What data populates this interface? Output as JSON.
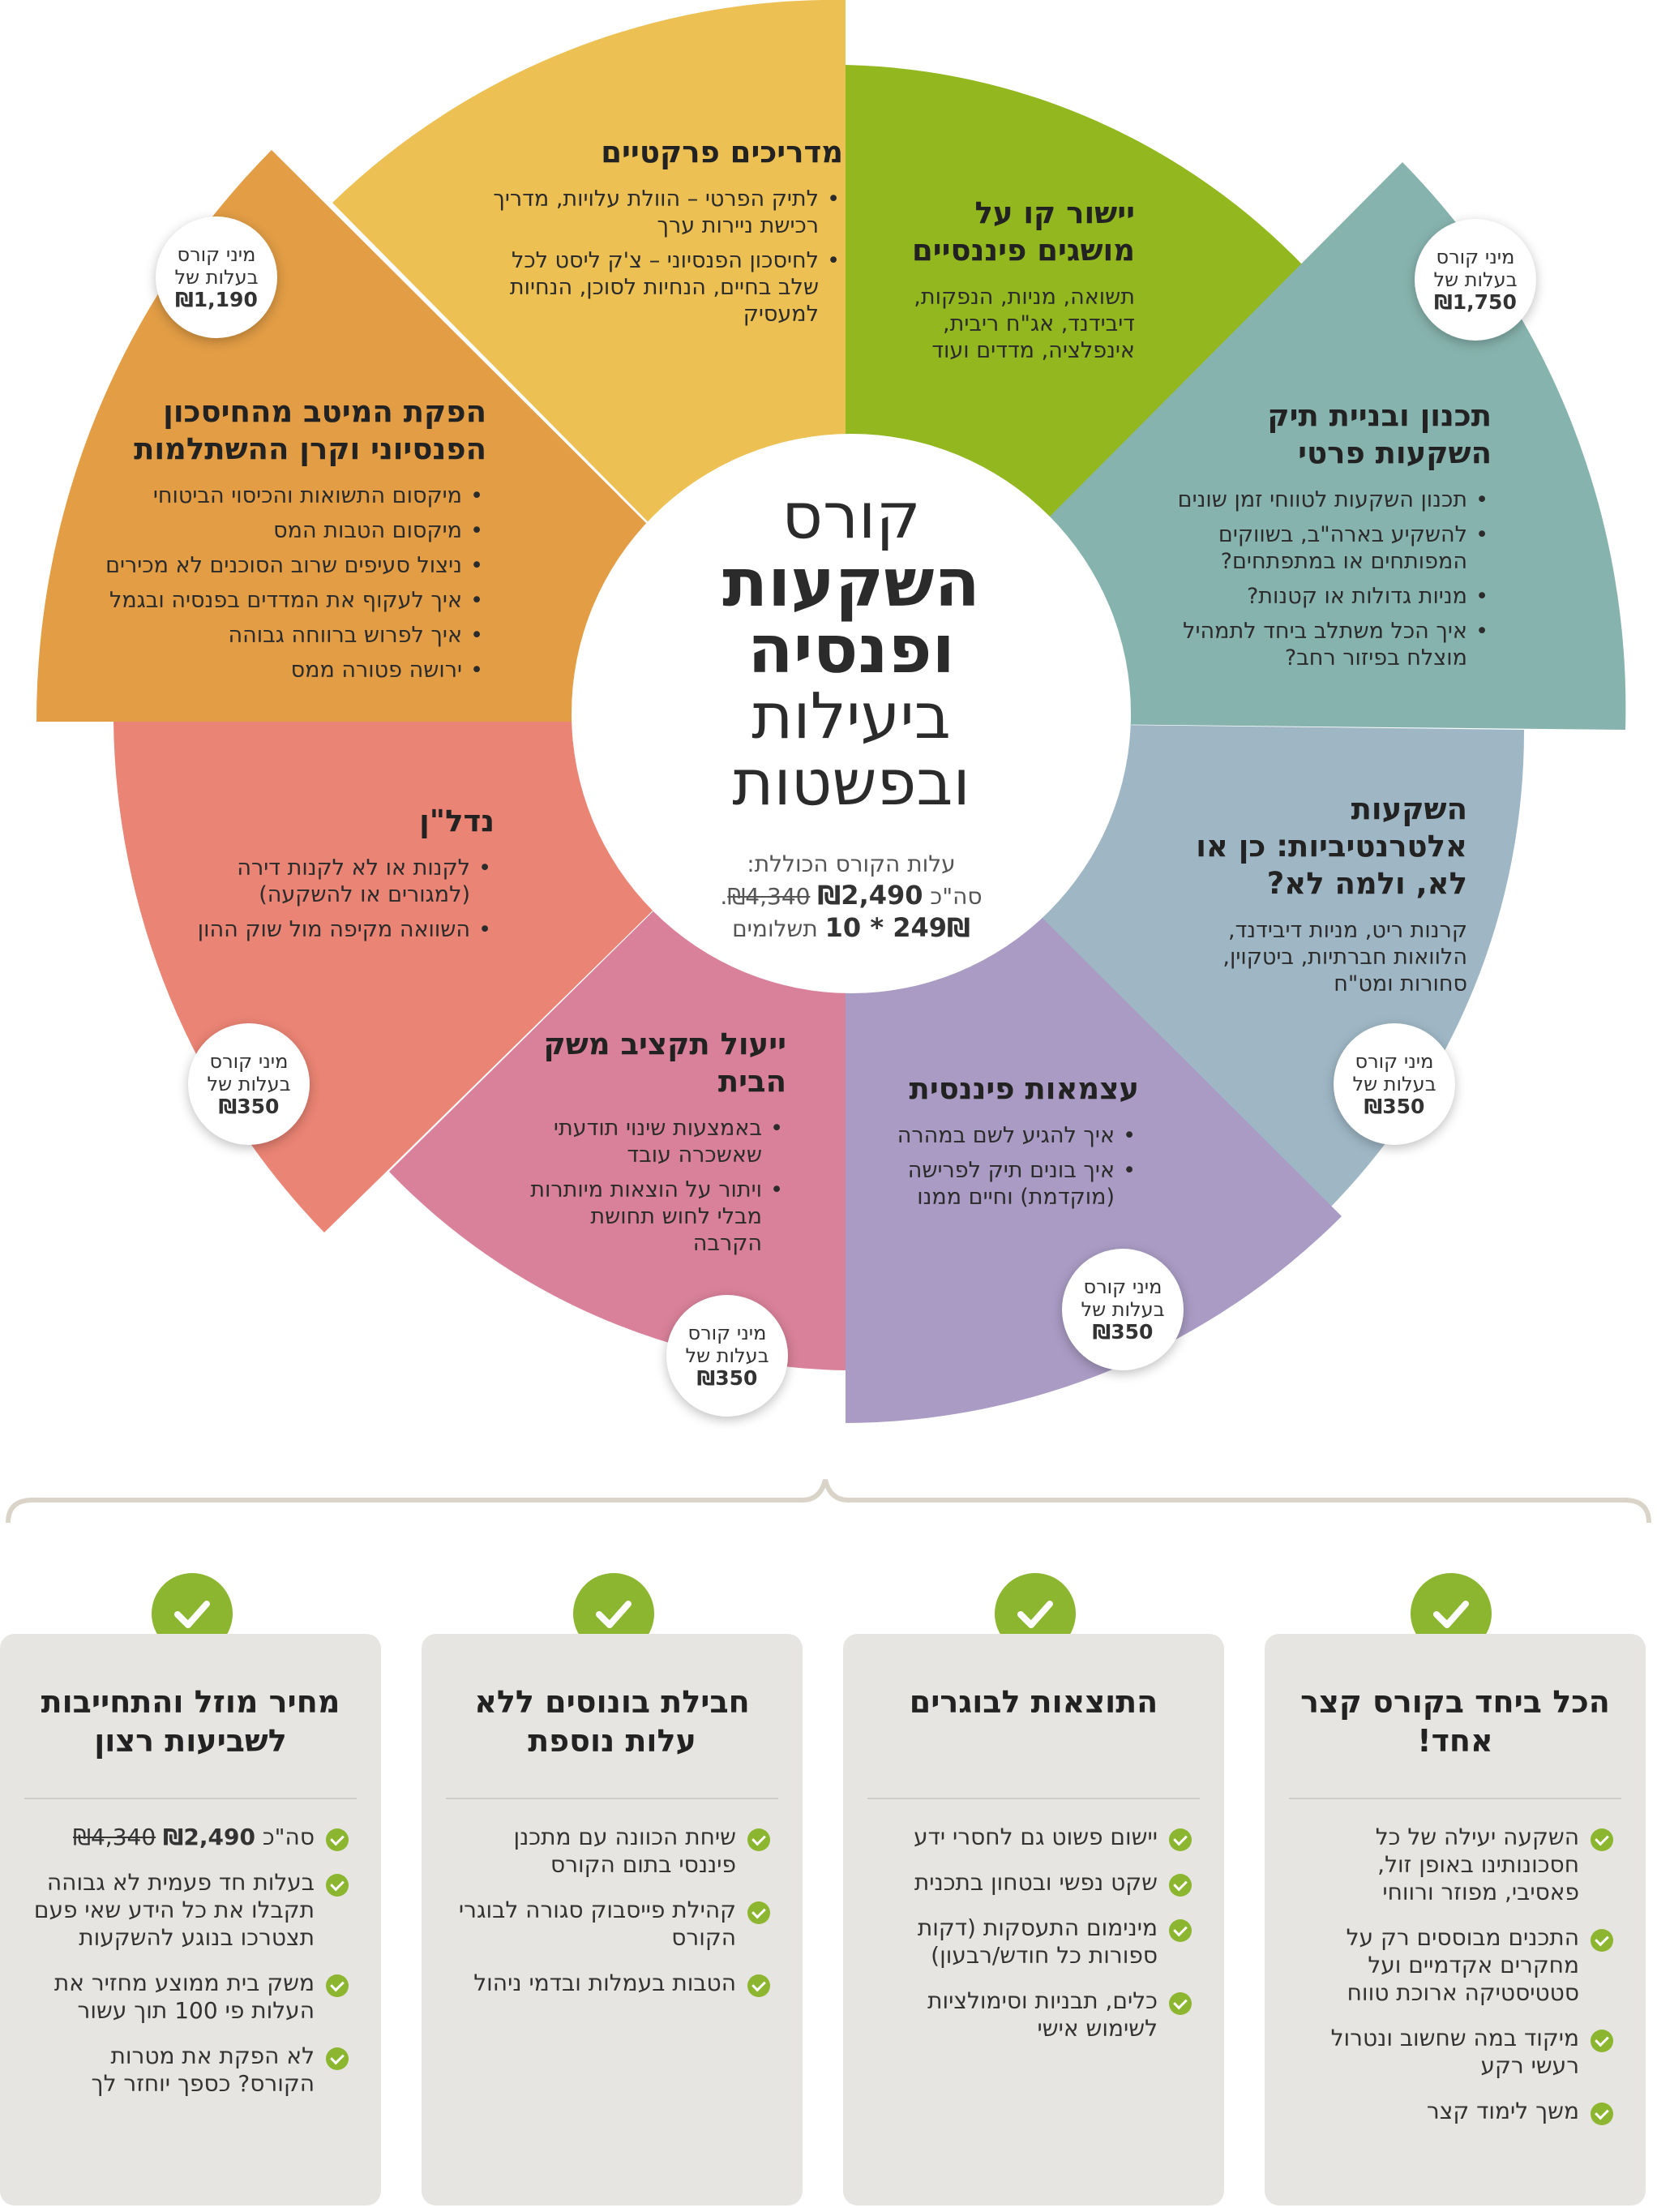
{
  "center": {
    "line1": "קורס",
    "line2": "השקעות",
    "line3": "ופנסיה",
    "line4": "ביעילות",
    "line5": "ובפשטות",
    "price_label": "עלות הקורס הכוללת:",
    "price_prefix": "סה\"כ",
    "price_new": "₪2,490",
    "price_old": "₪4,340",
    "installments_amount": "249₪ * 10",
    "installments_label": "תשלומים"
  },
  "segments": [
    {
      "id": "practical",
      "title": "מדריכים פרקטיים",
      "color": "#ecc053",
      "items": [
        "לתיק הפרטי – הוולת עלויות, מדריך רכישת ניירות ערך",
        "לחיסכון הפנסיוני – צ'ק ליסט לכל שלב בחיים, הנחיות לסוכן, הנחיות למעסיק"
      ]
    },
    {
      "id": "concepts",
      "title": "יישור קו על מושגים פיננסיים",
      "color": "#93b71f",
      "text": "תשואה, מניות, הנפקות, דיבידנד, אג\"ח ריבית, אינפלציה, מדדים ועוד"
    },
    {
      "id": "portfolio",
      "title": "תכנון ובניית תיק השקעות פרטי",
      "color": "#87b3ae",
      "items": [
        "תכנון השקעות לטווחי זמן שונים",
        "להשקיע בארה\"ב, בשווקים המפותחים או במתפתחים?",
        "מניות גדולות או קטנות?",
        "איך הכל משתלב ביחד לתמהיל מוצלח בפיזור רחב?"
      ]
    },
    {
      "id": "alternative",
      "title": "השקעות אלטרנטיביות: כן או לא, ולמה לא?",
      "color": "#9fb7c5",
      "text": "קרנות ריט, מניות דיבידנד, הלוואות חברתיות, ביטקוין, סחורות ומט\"ח"
    },
    {
      "id": "independence",
      "title": "עצמאות פיננסית",
      "color": "#a99bc3",
      "items": [
        "איך להגיע לשם במהרה",
        "איך בונים תיק לפרישה (מוקדמת) וחיים ממנו"
      ]
    },
    {
      "id": "budget",
      "title": "ייעול תקציב משק הבית",
      "color": "#d9819a",
      "items": [
        "באמצעות שינוי תודעתי שאשכרה עובד",
        "ויתור על הוצאות מיותרות מבלי לחוש תחושת הקרבה"
      ]
    },
    {
      "id": "realestate",
      "title": "נדל\"ן",
      "color": "#ea8474",
      "items": [
        "לקנות או לא לקנות דירה (למגורים או להשקעה)",
        "השוואה מקיפה מול שוק ההון"
      ]
    },
    {
      "id": "pension",
      "title": "הפקת המיטב מהחיסכון הפנסיוני וקרן ההשתלמות",
      "color": "#e29d45",
      "items": [
        "מיקסום התשואות והכיסוי הביטוחי",
        "מיקסום הטבות המס",
        "ניצול סעיפים שרוב הסוכנים לא מכירים",
        "איך לעקוף את המדדים בפנסיה ובגמל",
        "איך לפרוש ברווחה גבוהה",
        "ירושה פטורה ממס"
      ]
    }
  ],
  "badges": {
    "label1": "מיני קורס",
    "label2": "בעלות של",
    "pension_price": "₪1,190",
    "concepts_price": "₪1,750",
    "alternative_price": "₪350",
    "independence_price": "₪350",
    "budget_price": "₪350",
    "realestate_price": "₪350"
  },
  "cards": [
    {
      "title": "הכל ביחד בקורס קצר אחד!",
      "items": [
        "השקעה יעילה של כל חסכונותינו באופן זול, פאסיבי, מפוזר ורווחי",
        "התכנים מבוססים רק על מחקרים אקדמיים ועל סטטיסטיקה ארוכת טווח",
        "מיקוד במה שחשוב ונטרול רעשי רקע",
        "משך לימוד קצר"
      ]
    },
    {
      "title": "התוצאות לבוגרים",
      "items": [
        "יישום פשוט גם לחסרי ידע",
        "שקט נפשי ובטחון בתכנית",
        "מינימום התעסקות (דקות ספורות כל חודש/רבעון)",
        "כלים, תבניות וסימולציות לשימוש אישי"
      ]
    },
    {
      "title": "חבילת בונוסים ללא עלות נוספת",
      "items": [
        "שיחת הכוונה עם מתכנן פיננסי בתום הקורס",
        "קהילת פייסבוק סגורה לבוגרי הקורס",
        "הטבות בעמלות ובדמי ניהול"
      ]
    },
    {
      "title": "מחיר מוזל והתחייבות לשביעות רצון",
      "price_prefix": "סה\"כ",
      "price_new": "₪2,490",
      "price_old": "₪4,340",
      "items": [
        "בעלות חד פעמית לא גבוהה תקבלו את כל הידע שאי פעם תצטרכו בנוגע להשקעות",
        "משק בית ממוצע מחזיר את העלות פי 100 תוך עשור",
        "לא הפקת את מטרות הקורס? כספך יוחזר לך"
      ]
    }
  ]
}
